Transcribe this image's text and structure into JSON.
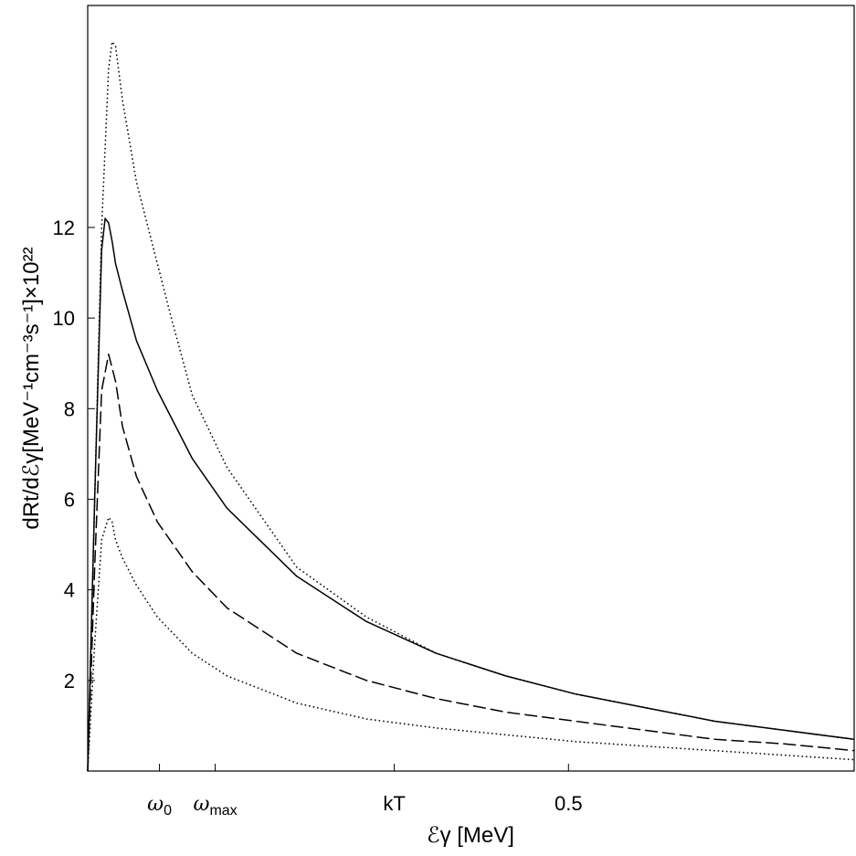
{
  "chart_data": {
    "type": "line",
    "xlabel": "ℰγ [MeV]",
    "ylabel": "dRt/dℰγ[MeV⁻¹cm⁻³s⁻¹]×10²²",
    "xlim": [
      0,
      1.1
    ],
    "ylim": [
      0,
      16.9
    ],
    "grid": false,
    "legend": "none",
    "y_ticks": [
      2,
      4,
      6,
      8,
      10,
      12
    ],
    "x_ticks": [
      {
        "value": 0.103,
        "label": "ω0"
      },
      {
        "value": 0.183,
        "label": "ωmax"
      },
      {
        "value": 0.44,
        "label": "kT"
      },
      {
        "value": 0.69,
        "label": "0.5"
      }
    ],
    "series": [
      {
        "style": "dotted",
        "x": [
          0,
          0.01,
          0.02,
          0.03,
          0.035,
          0.04,
          0.045,
          0.05,
          0.07,
          0.1,
          0.12,
          0.15,
          0.2,
          0.3,
          0.4,
          0.5,
          0.6,
          0.7,
          0.8,
          0.9,
          1.0,
          1.1
        ],
        "y": [
          0,
          6.0,
          12.0,
          15.5,
          16.1,
          16.0,
          15.4,
          14.8,
          13.0,
          11.2,
          10.0,
          8.3,
          6.7,
          4.5,
          3.4,
          2.6,
          2.1,
          1.7,
          1.4,
          1.1,
          0.9,
          0.7
        ]
      },
      {
        "style": "solid",
        "x": [
          0,
          0.01,
          0.02,
          0.025,
          0.03,
          0.035,
          0.04,
          0.05,
          0.07,
          0.1,
          0.15,
          0.2,
          0.3,
          0.4,
          0.5,
          0.6,
          0.7,
          0.8,
          0.9,
          1.0,
          1.1
        ],
        "y": [
          0,
          6.0,
          11.5,
          12.2,
          12.1,
          11.7,
          11.2,
          10.6,
          9.5,
          8.4,
          6.9,
          5.8,
          4.3,
          3.3,
          2.6,
          2.1,
          1.7,
          1.4,
          1.1,
          0.9,
          0.7
        ]
      },
      {
        "style": "dashed",
        "x": [
          0,
          0.01,
          0.02,
          0.03,
          0.04,
          0.05,
          0.07,
          0.1,
          0.15,
          0.2,
          0.3,
          0.4,
          0.5,
          0.6,
          0.7,
          0.8,
          0.9,
          1.0,
          1.1
        ],
        "y": [
          0,
          4.5,
          8.4,
          9.2,
          8.6,
          7.6,
          6.5,
          5.5,
          4.4,
          3.6,
          2.6,
          2.0,
          1.6,
          1.3,
          1.1,
          0.9,
          0.7,
          0.6,
          0.45
        ]
      },
      {
        "style": "dotted",
        "x": [
          0,
          0.01,
          0.02,
          0.03,
          0.035,
          0.04,
          0.05,
          0.07,
          0.1,
          0.15,
          0.2,
          0.3,
          0.4,
          0.5,
          0.6,
          0.7,
          0.8,
          0.9,
          1.0,
          1.1
        ],
        "y": [
          0,
          2.8,
          5.1,
          5.6,
          5.5,
          5.1,
          4.7,
          4.1,
          3.4,
          2.6,
          2.1,
          1.5,
          1.15,
          0.95,
          0.8,
          0.65,
          0.55,
          0.45,
          0.35,
          0.25
        ]
      }
    ]
  }
}
